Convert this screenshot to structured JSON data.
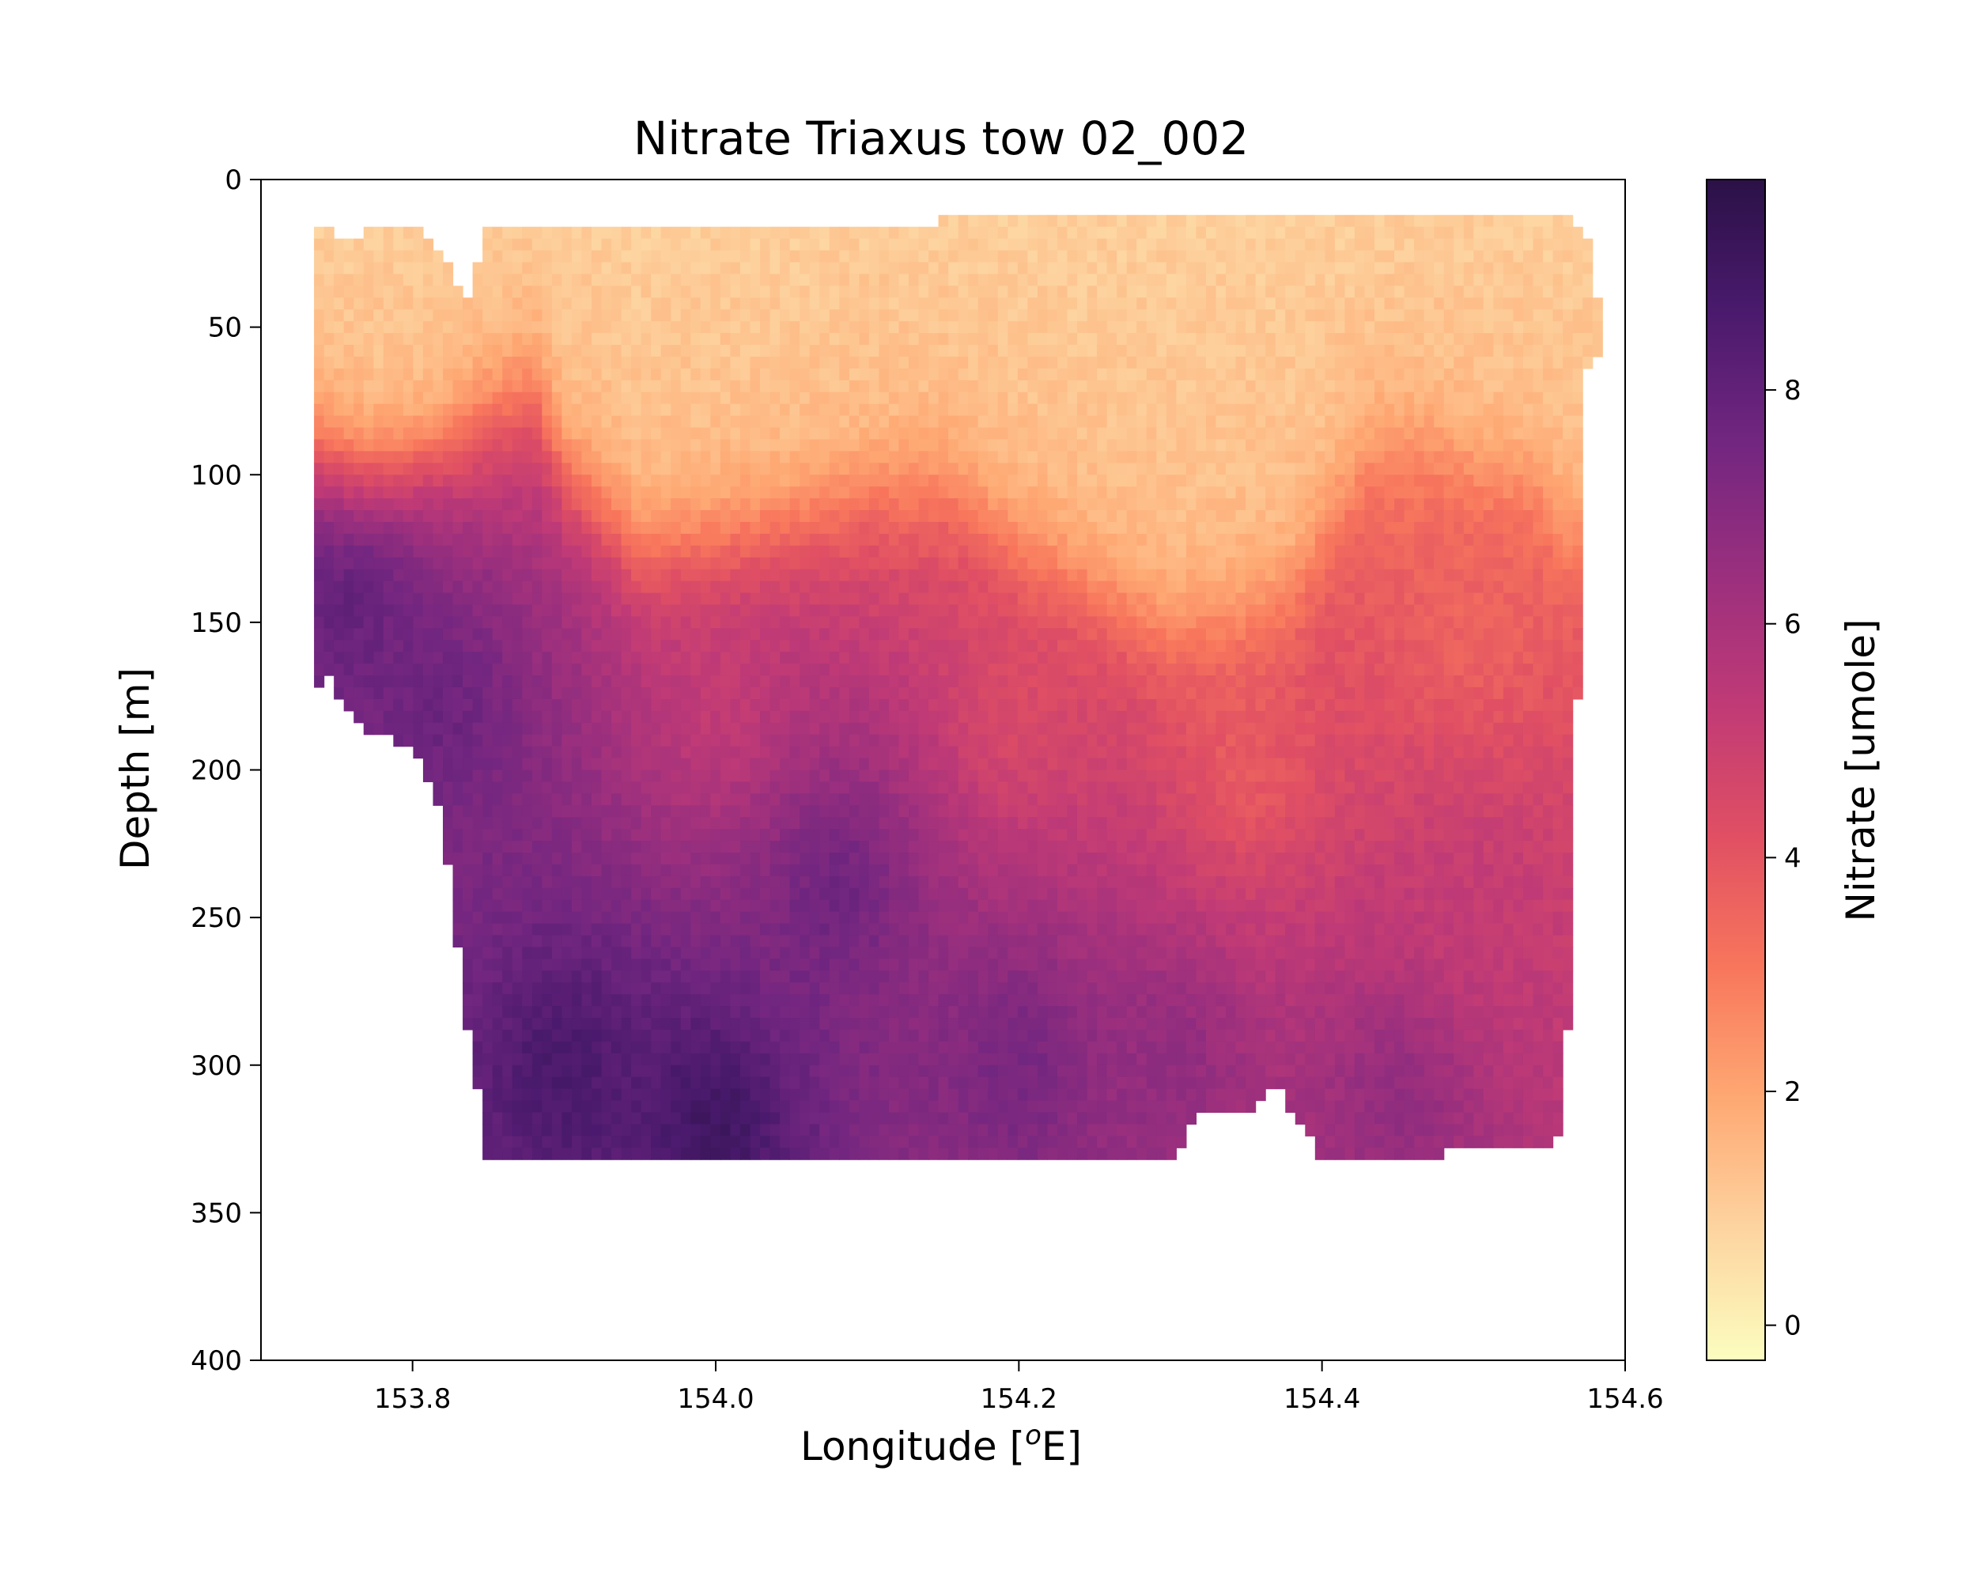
{
  "chart_data": {
    "type": "heatmap",
    "title": "Nitrate Triaxus tow 02_002",
    "xlabel_main": "Longitude [",
    "xlabel_sup": "o",
    "xlabel_tail": "E]",
    "ylabel": "Depth [m]",
    "colorbar_label": "Nitrate [umole]",
    "colormap": "magma_r",
    "colorbar_stops": [
      "#fcfdbf",
      "#fdd4a0",
      "#fea873",
      "#f8765c",
      "#e04f63",
      "#c03a76",
      "#9a2f7e",
      "#722680",
      "#4a1a6d",
      "#2b1147"
    ],
    "xlim": [
      153.7,
      154.6
    ],
    "ylim": [
      400,
      0
    ],
    "y_inverted": true,
    "clim": [
      -0.3,
      9.8
    ],
    "xticks": [
      153.8,
      154.0,
      154.2,
      154.4,
      154.6
    ],
    "xtick_labels": [
      "153.8",
      "154.0",
      "154.2",
      "154.4",
      "154.6"
    ],
    "yticks": [
      0,
      50,
      100,
      150,
      200,
      250,
      300,
      350,
      400
    ],
    "ytick_labels": [
      "0",
      "50",
      "100",
      "150",
      "200",
      "250",
      "300",
      "350",
      "400"
    ],
    "cbar_ticks": [
      0,
      2,
      4,
      6,
      8
    ],
    "cbar_tick_labels": [
      "0",
      "2",
      "4",
      "6",
      "8"
    ],
    "data_extent": {
      "lon": [
        153.735,
        153.745,
        153.76,
        153.775,
        153.79,
        153.8,
        153.82,
        153.835,
        153.85,
        153.87,
        153.9,
        153.95,
        154.0,
        154.05,
        154.1,
        154.15,
        154.2,
        154.25,
        154.3,
        154.32,
        154.35,
        154.37,
        154.4,
        154.45,
        154.5,
        154.54,
        154.56,
        154.575,
        154.585
      ],
      "top_depth": [
        19,
        20,
        22,
        16,
        16,
        17,
        26,
        44,
        17,
        17,
        17,
        18,
        18,
        18,
        17,
        16,
        15,
        15,
        15,
        15,
        14,
        14,
        13,
        12,
        12,
        12,
        12,
        20,
        50
      ],
      "bottom_depth": [
        172,
        167,
        182,
        188,
        188,
        189,
        216,
        282,
        330,
        330,
        331,
        330,
        330,
        331,
        330,
        331,
        331,
        331,
        331,
        312,
        314,
        305,
        330,
        330,
        327,
        325,
        323,
        63,
        55
      ]
    },
    "nitracline": {
      "lon": [
        153.735,
        153.76,
        153.78,
        153.8,
        153.83,
        153.85,
        153.88,
        153.9,
        153.95,
        154.0,
        154.05,
        154.08,
        154.1,
        154.15,
        154.2,
        154.25,
        154.3,
        154.35,
        154.38,
        154.4,
        154.43,
        154.47,
        154.5,
        154.54,
        154.56
      ],
      "depth": [
        90,
        95,
        95,
        88,
        80,
        72,
        70,
        100,
        130,
        125,
        115,
        105,
        95,
        100,
        125,
        140,
        155,
        150,
        140,
        120,
        90,
        80,
        90,
        100,
        120
      ]
    },
    "interior_field": {
      "comment_free": true,
      "anchors": [
        {
          "lon": 153.76,
          "depth": 140,
          "value": 8.2
        },
        {
          "lon": 153.82,
          "depth": 180,
          "value": 7.8
        },
        {
          "lon": 153.9,
          "depth": 300,
          "value": 8.8
        },
        {
          "lon": 154.0,
          "depth": 320,
          "value": 9.2
        },
        {
          "lon": 154.08,
          "depth": 240,
          "value": 7.8
        },
        {
          "lon": 154.2,
          "depth": 300,
          "value": 7.6
        },
        {
          "lon": 154.3,
          "depth": 300,
          "value": 6.8
        },
        {
          "lon": 154.45,
          "depth": 310,
          "value": 6.8
        },
        {
          "lon": 154.5,
          "depth": 250,
          "value": 5.2
        },
        {
          "lon": 154.0,
          "depth": 180,
          "value": 5.2
        },
        {
          "lon": 154.2,
          "depth": 180,
          "value": 4.4
        },
        {
          "lon": 154.35,
          "depth": 200,
          "value": 3.8
        },
        {
          "lon": 154.5,
          "depth": 150,
          "value": 3.6
        },
        {
          "lon": 154.1,
          "depth": 60,
          "value": 1.4
        },
        {
          "lon": 154.3,
          "depth": 50,
          "value": 1.0
        },
        {
          "lon": 153.8,
          "depth": 50,
          "value": 1.4
        },
        {
          "lon": 154.5,
          "depth": 40,
          "value": 0.8
        }
      ]
    }
  }
}
